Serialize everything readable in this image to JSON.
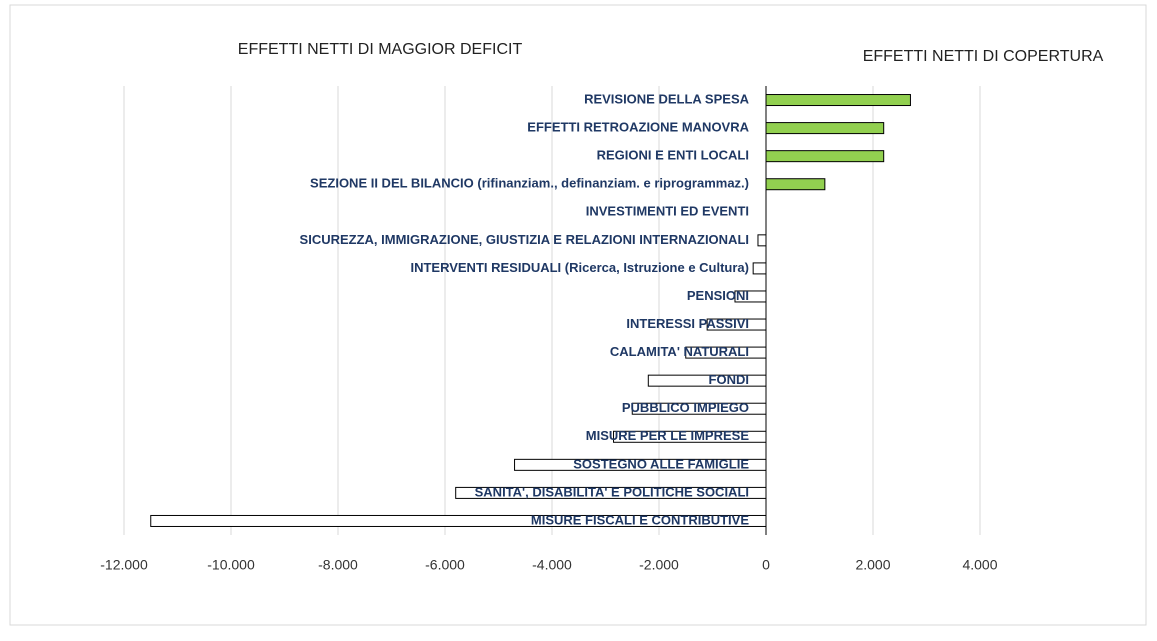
{
  "chart_data": {
    "type": "bar",
    "orientation": "horizontal",
    "title_left": "EFFETTI NETTI DI MAGGIOR DEFICIT",
    "title_right": "EFFETTI NETTI DI COPERTURA",
    "categories": [
      "REVISIONE DELLA SPESA",
      "EFFETTI RETROAZIONE MANOVRA",
      "REGIONI E ENTI LOCALI",
      "SEZIONE II DEL BILANCIO (rifinanziam., definanziam. e riprogrammaz.)",
      "INVESTIMENTI ED EVENTI",
      "SICUREZZA, IMMIGRAZIONE, GIUSTIZIA E RELAZIONI INTERNAZIONALI",
      "INTERVENTI RESIDUALI (Ricerca, Istruzione e Cultura)",
      "PENSIONI",
      "INTERESSI PASSIVI",
      "CALAMITA' NATURALI",
      "FONDI",
      "PUBBLICO IMPIEGO",
      "MISURE PER LE IMPRESE",
      "SOSTEGNO ALLE FAMIGLIE",
      "SANITA', DISABILITA' E POLITICHE SOCIALI",
      "MISURE FISCALI E CONTRIBUTIVE"
    ],
    "values": [
      2700,
      2200,
      2200,
      1100,
      0,
      -150,
      -240,
      -580,
      -1100,
      -1500,
      -2200,
      -2500,
      -2850,
      -4700,
      -5800,
      -11500
    ],
    "positive_color": "#92d050",
    "negative_color": "#ffffff",
    "xlim": [
      -12000,
      4000
    ],
    "xticks": [
      {
        "value": -12000,
        "label": "-12.000"
      },
      {
        "value": -10000,
        "label": "-10.000"
      },
      {
        "value": -8000,
        "label": "-8.000"
      },
      {
        "value": -6000,
        "label": "-6.000"
      },
      {
        "value": -4000,
        "label": "-4.000"
      },
      {
        "value": -2000,
        "label": "-2.000"
      },
      0,
      {
        "value": 2000,
        "label": "2.000"
      },
      {
        "value": 4000,
        "label": "4.000"
      }
    ],
    "grid": true
  }
}
